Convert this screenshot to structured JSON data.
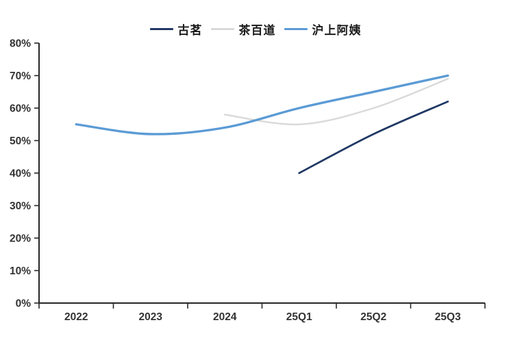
{
  "chart_data": {
    "type": "line",
    "title": "",
    "categories": [
      "2022",
      "2023",
      "2024",
      "25Q1",
      "25Q2",
      "25Q3"
    ],
    "y_axis": {
      "min": 0,
      "max": 80,
      "step": 10,
      "unit": "%"
    },
    "y_tick_labels": [
      "0%",
      "10%",
      "20%",
      "30%",
      "40%",
      "50%",
      "60%",
      "70%",
      "80%"
    ],
    "grid": false,
    "legend_position": "top",
    "series": [
      {
        "name": "古茗",
        "color": "#203864",
        "start_index": 3,
        "values": [
          40,
          52,
          62
        ]
      },
      {
        "name": "茶百道",
        "color": "#d9d9d9",
        "start_index": 2,
        "values": [
          58,
          55,
          60,
          69
        ]
      },
      {
        "name": "沪上阿姨",
        "color": "#5b9bd5",
        "start_index": 0,
        "values": [
          55,
          52,
          54,
          60,
          65,
          70
        ]
      }
    ],
    "axis_color": "#262626",
    "label_color": "#333333"
  }
}
